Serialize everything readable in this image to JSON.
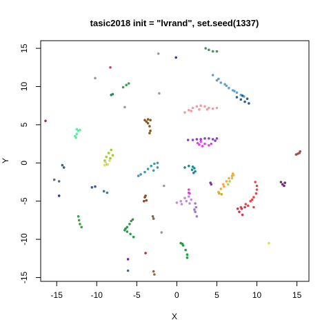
{
  "chart_data": {
    "type": "scatter",
    "title": "tasic2018 init = \"lvrand\", set.seed(1337)",
    "xlabel": "X",
    "ylabel": "Y",
    "xlim": [
      -17,
      16.5
    ],
    "ylim": [
      -15.5,
      16
    ],
    "xticks": [
      -15,
      -10,
      -5,
      0,
      5,
      10,
      15
    ],
    "yticks": [
      -15,
      -10,
      -5,
      0,
      5,
      10,
      15
    ],
    "grid": false,
    "legend": "none",
    "clusters": [
      {
        "color": "#5ba3d6",
        "points": [
          [
            4.5,
            11.5
          ],
          [
            5.0,
            10.8
          ],
          [
            5.5,
            10.5
          ],
          [
            6.0,
            10.3
          ],
          [
            6.5,
            9.8
          ],
          [
            7.0,
            9.5
          ],
          [
            7.5,
            9.2
          ],
          [
            8.0,
            8.9
          ],
          [
            8.4,
            8.7
          ],
          [
            5.2,
            11.0
          ],
          [
            6.2,
            10.1
          ],
          [
            7.2,
            9.4
          ]
        ]
      },
      {
        "color": "#2b5f8a",
        "points": [
          [
            7.5,
            8.6
          ],
          [
            8.0,
            8.3
          ],
          [
            8.5,
            8.0
          ],
          [
            8.8,
            8.4
          ],
          [
            9.0,
            7.8
          ],
          [
            8.2,
            8.8
          ]
        ]
      },
      {
        "color": "#f49aa4",
        "points": [
          [
            1.0,
            6.6
          ],
          [
            1.5,
            6.9
          ],
          [
            2.0,
            7.2
          ],
          [
            2.5,
            7.4
          ],
          [
            3.0,
            7.5
          ],
          [
            3.5,
            7.4
          ],
          [
            4.0,
            7.2
          ],
          [
            4.5,
            7.1
          ],
          [
            5.0,
            7.2
          ],
          [
            2.8,
            7.0
          ],
          [
            3.8,
            7.0
          ],
          [
            1.8,
            6.8
          ]
        ]
      },
      {
        "color": "#ee3fe4",
        "points": [
          [
            2.6,
            2.6
          ],
          [
            3.0,
            2.8
          ],
          [
            3.5,
            2.5
          ],
          [
            4.0,
            2.3
          ],
          [
            4.3,
            2.5
          ],
          [
            3.2,
            2.2
          ],
          [
            2.8,
            2.4
          ]
        ]
      },
      {
        "color": "#8c40c8",
        "points": [
          [
            2.0,
            3.0
          ],
          [
            2.5,
            3.1
          ],
          [
            3.0,
            3.1
          ],
          [
            3.5,
            3.2
          ],
          [
            4.0,
            3.2
          ],
          [
            4.5,
            3.1
          ],
          [
            5.0,
            3.2
          ],
          [
            4.8,
            2.9
          ],
          [
            1.4,
            3.0
          ]
        ]
      },
      {
        "color": "#1a8aa0",
        "points": [
          [
            1.0,
            -0.6
          ],
          [
            1.5,
            -0.4
          ],
          [
            2.0,
            -0.5
          ],
          [
            2.2,
            -0.7
          ],
          [
            2.3,
            -1.1
          ],
          [
            2.1,
            -1.3
          ],
          [
            1.9,
            -0.9
          ]
        ]
      },
      {
        "color": "#3d98b5",
        "points": [
          [
            -4.5,
            -1.5
          ],
          [
            -4.0,
            -1.2
          ],
          [
            -3.6,
            -0.8
          ],
          [
            -3.2,
            -0.4
          ],
          [
            -2.8,
            -0.1
          ],
          [
            -2.4,
            0.0
          ],
          [
            -2.4,
            -0.6
          ],
          [
            -2.9,
            -1.0
          ],
          [
            -4.8,
            -1.7
          ]
        ]
      },
      {
        "color": "#9ccc3a",
        "points": [
          [
            -9.0,
            0.3
          ],
          [
            -8.8,
            0.8
          ],
          [
            -8.5,
            1.3
          ],
          [
            -8.2,
            1.7
          ],
          [
            -8.7,
            -0.2
          ],
          [
            -8.3,
            0.6
          ],
          [
            -8.0,
            1.0
          ]
        ]
      },
      {
        "color": "#d9d97a",
        "points": [
          [
            -9.0,
            -0.3
          ],
          [
            -8.6,
            -0.2
          ],
          [
            -8.9,
            0.1
          ],
          [
            -8.4,
            0.3
          ]
        ]
      },
      {
        "color": "#62e8a4",
        "points": [
          [
            -12.7,
            3.5
          ],
          [
            -12.5,
            3.8
          ],
          [
            -12.3,
            4.2
          ],
          [
            -12.5,
            4.4
          ],
          [
            -12.1,
            4.3
          ],
          [
            -12.6,
            3.3
          ]
        ]
      },
      {
        "color": "#8a5a1a",
        "points": [
          [
            -4.0,
            5.6
          ],
          [
            -3.6,
            5.7
          ],
          [
            -3.3,
            5.6
          ],
          [
            -3.6,
            5.2
          ],
          [
            -3.4,
            4.8
          ],
          [
            -3.3,
            4.2
          ],
          [
            -3.4,
            3.9
          ],
          [
            -3.8,
            5.4
          ]
        ]
      },
      {
        "color": "#ffa633",
        "points": [
          [
            5.2,
            -3.8
          ],
          [
            5.5,
            -3.4
          ],
          [
            5.8,
            -2.8
          ],
          [
            6.2,
            -2.4
          ],
          [
            6.5,
            -2.0
          ],
          [
            6.9,
            -1.7
          ],
          [
            7.0,
            -1.4
          ],
          [
            5.9,
            -3.1
          ]
        ]
      },
      {
        "color": "#b9d04a",
        "points": [
          [
            6.6,
            -2.4
          ],
          [
            6.9,
            -2.0
          ],
          [
            7.1,
            -1.6
          ],
          [
            6.4,
            -2.8
          ]
        ]
      },
      {
        "color": "#c8b42a",
        "points": [
          [
            5.6,
            -4.1
          ],
          [
            5.3,
            -4.0
          ]
        ]
      },
      {
        "color": "#ee4444",
        "points": [
          [
            8.0,
            -5.8
          ],
          [
            8.6,
            -5.4
          ],
          [
            9.2,
            -5.0
          ],
          [
            9.6,
            -4.5
          ],
          [
            9.9,
            -4.0
          ],
          [
            10.0,
            -3.5
          ],
          [
            10.0,
            -3.0
          ],
          [
            9.8,
            -2.5
          ],
          [
            9.6,
            -5.8
          ],
          [
            9.4,
            -4.8
          ],
          [
            8.9,
            -5.6
          ]
        ]
      },
      {
        "color": "#c8385a",
        "points": [
          [
            7.8,
            -6.4
          ],
          [
            8.1,
            -6.0
          ],
          [
            8.5,
            -5.8
          ],
          [
            8.2,
            -6.8
          ],
          [
            7.6,
            -6.0
          ]
        ]
      },
      {
        "color": "#c08ee0",
        "points": [
          [
            0.0,
            -5.2
          ],
          [
            0.5,
            -5.0
          ],
          [
            1.0,
            -4.6
          ],
          [
            1.5,
            -4.4
          ],
          [
            1.8,
            -4.8
          ],
          [
            1.6,
            -5.3
          ],
          [
            1.2,
            -5.0
          ],
          [
            0.6,
            -5.4
          ]
        ]
      },
      {
        "color": "#d44ad0",
        "points": [
          [
            1.5,
            -3.5
          ],
          [
            1.6,
            -4.0
          ],
          [
            1.5,
            -3.9
          ]
        ]
      },
      {
        "color": "#9a80c0",
        "points": [
          [
            2.3,
            -5.3
          ],
          [
            2.4,
            -5.8
          ],
          [
            2.3,
            -6.4
          ],
          [
            2.5,
            -7.0
          ],
          [
            2.2,
            -6.1
          ]
        ]
      },
      {
        "color": "#7a3aa0",
        "points": [
          [
            4.2,
            -2.6
          ],
          [
            4.3,
            -2.8
          ]
        ]
      },
      {
        "color": "#6a2e6e",
        "points": [
          [
            13.0,
            -2.5
          ],
          [
            13.5,
            -2.6
          ],
          [
            13.2,
            -2.8
          ],
          [
            13.4,
            -3.0
          ]
        ]
      },
      {
        "color": "#8a4c28",
        "points": [
          [
            -4.0,
            -4.5
          ],
          [
            -3.8,
            -4.9
          ],
          [
            -4.1,
            -5.0
          ],
          [
            -3.9,
            -4.3
          ]
        ]
      },
      {
        "color": "#2a9a4a",
        "points": [
          [
            -6.5,
            -8.8
          ],
          [
            -6.2,
            -8.4
          ],
          [
            -5.9,
            -8.0
          ],
          [
            -5.7,
            -7.6
          ],
          [
            -6.2,
            -9.0
          ],
          [
            -5.8,
            -9.3
          ],
          [
            -5.4,
            -9.7
          ],
          [
            -6.4,
            -8.6
          ],
          [
            -5.5,
            -7.4
          ]
        ]
      },
      {
        "color": "#20a040",
        "points": [
          [
            0.5,
            -10.5
          ],
          [
            0.8,
            -10.8
          ],
          [
            1.1,
            -11.4
          ],
          [
            1.3,
            -12.0
          ],
          [
            1.3,
            -12.4
          ],
          [
            0.7,
            -10.6
          ]
        ]
      },
      {
        "color": "#3aa040",
        "points": [
          [
            -12.3,
            -7.0
          ],
          [
            -12.2,
            -7.5
          ],
          [
            -12.1,
            -8.0
          ],
          [
            -11.9,
            -8.4
          ]
        ]
      },
      {
        "color": "#3a9a50",
        "points": [
          [
            3.6,
            15.0
          ],
          [
            4.0,
            14.8
          ],
          [
            4.5,
            14.6
          ],
          [
            5.0,
            14.6
          ]
        ]
      },
      {
        "color": "#3aa050",
        "points": [
          [
            -6.7,
            9.9
          ],
          [
            -6.3,
            10.2
          ],
          [
            -6.0,
            10.4
          ]
        ]
      },
      {
        "color": "#2a8a6a",
        "points": [
          [
            -8.2,
            8.9
          ],
          [
            -8.0,
            9.0
          ]
        ]
      },
      {
        "color": "#2a6a7a",
        "points": [
          [
            -14.3,
            -0.3
          ],
          [
            -14.1,
            -0.6
          ]
        ]
      },
      {
        "color": "#405a8a",
        "points": [
          [
            -10.6,
            -3.2
          ],
          [
            -10.2,
            -3.1
          ]
        ]
      },
      {
        "color": "#3a7a8a",
        "points": [
          [
            -9.1,
            -3.7
          ],
          [
            -8.7,
            -3.9
          ]
        ]
      },
      {
        "color": "#5a6a8a",
        "points": [
          [
            -15.3,
            -2.2
          ],
          [
            -14.7,
            -2.4
          ]
        ]
      },
      {
        "color": "#7a6a50",
        "points": [
          [
            -3.0,
            -7.0
          ],
          [
            -2.9,
            -7.3
          ]
        ]
      },
      {
        "color": "#8a6a3a",
        "points": [
          [
            -2.9,
            -14.2
          ],
          [
            -2.8,
            -14.6
          ]
        ]
      },
      {
        "color": "#a0524a",
        "points": [
          [
            14.9,
            1.1
          ],
          [
            15.1,
            1.2
          ],
          [
            15.3,
            1.3
          ],
          [
            15.4,
            1.5
          ]
        ]
      },
      {
        "color": "#2a3aa0",
        "points": [
          [
            -14.7,
            -4.3
          ],
          [
            -0.1,
            13.8
          ]
        ]
      },
      {
        "color": "#e03a5a",
        "points": [
          [
            -8.3,
            12.5
          ]
        ]
      },
      {
        "color": "#a02a6a",
        "points": [
          [
            -16.4,
            5.5
          ]
        ]
      },
      {
        "color": "#9a9a9a",
        "points": [
          [
            -10.2,
            11.1
          ],
          [
            -2.2,
            9.1
          ],
          [
            -6.5,
            7.3
          ],
          [
            -1.6,
            -3.0
          ],
          [
            -2.3,
            14.3
          ],
          [
            -1.9,
            -9.1
          ]
        ]
      },
      {
        "color": "#6a2aa0",
        "points": [
          [
            -6.1,
            -12.6
          ]
        ]
      },
      {
        "color": "#c02a2a",
        "points": [
          [
            -3.9,
            -11.8
          ]
        ]
      },
      {
        "color": "#3a6aa0",
        "points": [
          [
            -6.1,
            -14.1
          ]
        ]
      },
      {
        "color": "#e8e040",
        "points": [
          [
            11.5,
            -10.5
          ]
        ]
      }
    ]
  }
}
